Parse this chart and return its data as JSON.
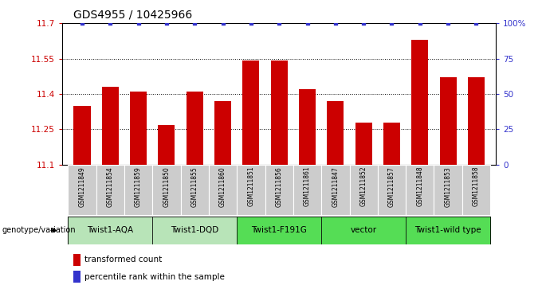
{
  "title": "GDS4955 / 10425966",
  "samples": [
    "GSM1211849",
    "GSM1211854",
    "GSM1211859",
    "GSM1211850",
    "GSM1211855",
    "GSM1211860",
    "GSM1211851",
    "GSM1211856",
    "GSM1211861",
    "GSM1211847",
    "GSM1211852",
    "GSM1211857",
    "GSM1211848",
    "GSM1211853",
    "GSM1211858"
  ],
  "values": [
    11.35,
    11.43,
    11.41,
    11.27,
    11.41,
    11.37,
    11.54,
    11.54,
    11.42,
    11.37,
    11.28,
    11.28,
    11.63,
    11.47,
    11.47
  ],
  "percentile": [
    100,
    100,
    100,
    100,
    100,
    100,
    100,
    100,
    100,
    100,
    100,
    100,
    100,
    100,
    100
  ],
  "ylim": [
    11.1,
    11.7
  ],
  "yticks": [
    11.1,
    11.25,
    11.4,
    11.55,
    11.7
  ],
  "right_yticks": [
    0,
    25,
    50,
    75,
    100
  ],
  "right_ylabels": [
    "0",
    "25",
    "50",
    "75",
    "100%"
  ],
  "bar_color": "#CC0000",
  "dot_color": "#3333CC",
  "groups": [
    {
      "label": "Twist1-AQA",
      "start": 0,
      "end": 3,
      "color": "#b8e4b8"
    },
    {
      "label": "Twist1-DQD",
      "start": 3,
      "end": 6,
      "color": "#b8e4b8"
    },
    {
      "label": "Twist1-F191G",
      "start": 6,
      "end": 9,
      "color": "#55DD55"
    },
    {
      "label": "vector",
      "start": 9,
      "end": 12,
      "color": "#55DD55"
    },
    {
      "label": "Twist1-wild type",
      "start": 12,
      "end": 15,
      "color": "#55DD55"
    }
  ],
  "sample_box_color": "#cccccc",
  "tick_color_left": "#CC0000",
  "tick_color_right": "#3333CC",
  "legend_bar_label": "transformed count",
  "legend_dot_label": "percentile rank within the sample"
}
